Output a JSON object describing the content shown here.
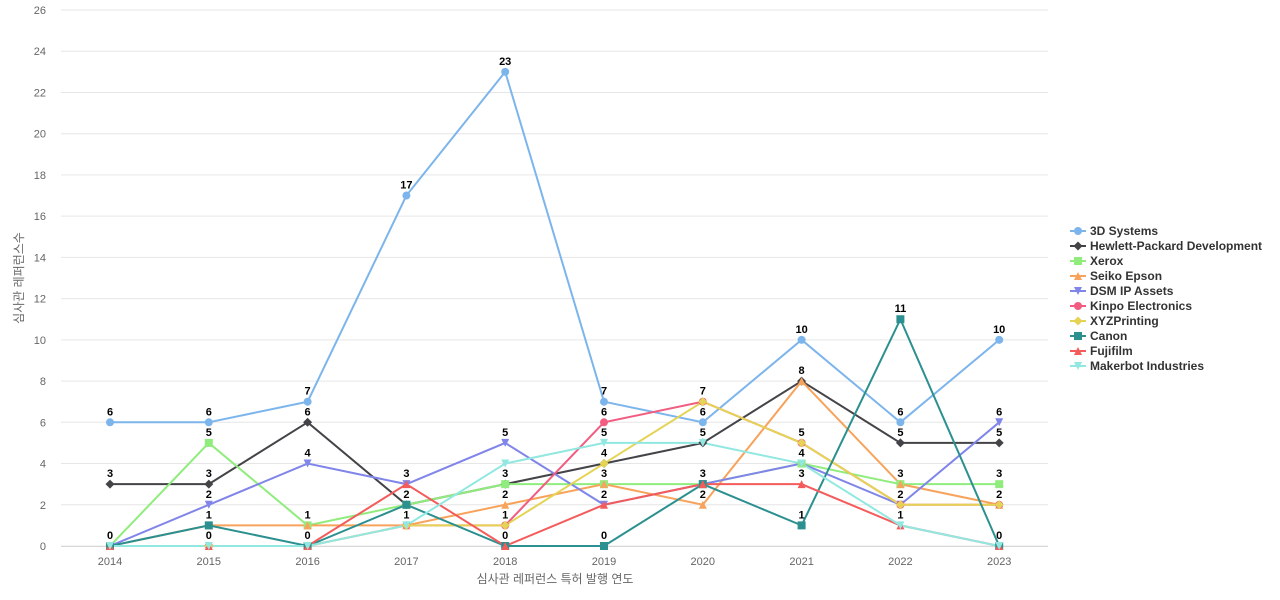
{
  "chart_data": {
    "type": "line",
    "title": "",
    "xlabel": "심사관 레퍼런스 특허 발행 연도",
    "ylabel": "심사관 레퍼런스수",
    "x": [
      "2014",
      "2015",
      "2016",
      "2017",
      "2018",
      "2019",
      "2020",
      "2021",
      "2022",
      "2023"
    ],
    "ylim": [
      0,
      26
    ],
    "yticks": [
      0,
      2,
      4,
      6,
      8,
      10,
      12,
      14,
      16,
      18,
      20,
      22,
      24,
      26
    ],
    "grid": true,
    "legend_position": "right",
    "series": [
      {
        "name": "3D Systems",
        "color": "#7cb5ec",
        "marker": "circle",
        "values": [
          6,
          6,
          7,
          17,
          23,
          7,
          6,
          10,
          6,
          10
        ]
      },
      {
        "name": "Hewlett-Packard Development",
        "color": "#434348",
        "marker": "diamond",
        "values": [
          3,
          3,
          6,
          2,
          3,
          4,
          5,
          8,
          5,
          5
        ]
      },
      {
        "name": "Xerox",
        "color": "#90ed7d",
        "marker": "square",
        "values": [
          0,
          5,
          1,
          2,
          3,
          3,
          3,
          4,
          3,
          3
        ]
      },
      {
        "name": "Seiko Epson",
        "color": "#f7a35c",
        "marker": "triangle",
        "values": [
          0,
          1,
          1,
          1,
          2,
          3,
          2,
          8,
          3,
          2
        ]
      },
      {
        "name": "DSM IP Assets",
        "color": "#8085e9",
        "marker": "triangle-down",
        "values": [
          0,
          2,
          4,
          3,
          5,
          2,
          3,
          4,
          2,
          6
        ]
      },
      {
        "name": "Kinpo Electronics",
        "color": "#f15c80",
        "marker": "circle",
        "values": [
          0,
          0,
          0,
          1,
          1,
          6,
          7,
          5,
          2,
          2
        ]
      },
      {
        "name": "XYZPrinting",
        "color": "#e4d354",
        "marker": "diamond",
        "values": [
          0,
          0,
          0,
          1,
          1,
          4,
          7,
          5,
          2,
          2
        ]
      },
      {
        "name": "Canon",
        "color": "#2b908f",
        "marker": "square",
        "values": [
          0,
          1,
          0,
          2,
          0,
          0,
          3,
          1,
          11,
          0
        ]
      },
      {
        "name": "Fujifilm",
        "color": "#f45b5b",
        "marker": "triangle",
        "values": [
          0,
          0,
          0,
          3,
          0,
          2,
          3,
          3,
          1,
          0
        ]
      },
      {
        "name": "Makerbot Industries",
        "color": "#91e8e1",
        "marker": "triangle-down",
        "values": [
          0,
          0,
          0,
          1,
          4,
          5,
          5,
          4,
          1,
          0
        ]
      }
    ],
    "data_labels": [
      {
        "x": "2014",
        "text": "6",
        "value": 6
      },
      {
        "x": "2014",
        "text": "3",
        "value": 3
      },
      {
        "x": "2014",
        "text": "0",
        "value": 0
      },
      {
        "x": "2015",
        "text": "6",
        "value": 6
      },
      {
        "x": "2015",
        "text": "5",
        "value": 5
      },
      {
        "x": "2015",
        "text": "3",
        "value": 3
      },
      {
        "x": "2015",
        "text": "2",
        "value": 2
      },
      {
        "x": "2015",
        "text": "1",
        "value": 1
      },
      {
        "x": "2015",
        "text": "0",
        "value": 0
      },
      {
        "x": "2016",
        "text": "7",
        "value": 7
      },
      {
        "x": "2016",
        "text": "6",
        "value": 6
      },
      {
        "x": "2016",
        "text": "4",
        "value": 4
      },
      {
        "x": "2016",
        "text": "1",
        "value": 1
      },
      {
        "x": "2016",
        "text": "0",
        "value": 0
      },
      {
        "x": "2017",
        "text": "17",
        "value": 17
      },
      {
        "x": "2017",
        "text": "3",
        "value": 3
      },
      {
        "x": "2017",
        "text": "2",
        "value": 2
      },
      {
        "x": "2017",
        "text": "1",
        "value": 1
      },
      {
        "x": "2018",
        "text": "23",
        "value": 23
      },
      {
        "x": "2018",
        "text": "5",
        "value": 5
      },
      {
        "x": "2018",
        "text": "3",
        "value": 3
      },
      {
        "x": "2018",
        "text": "2",
        "value": 2
      },
      {
        "x": "2018",
        "text": "1",
        "value": 1
      },
      {
        "x": "2018",
        "text": "0",
        "value": 0
      },
      {
        "x": "2019",
        "text": "7",
        "value": 7
      },
      {
        "x": "2019",
        "text": "6",
        "value": 6
      },
      {
        "x": "2019",
        "text": "5",
        "value": 5
      },
      {
        "x": "2019",
        "text": "4",
        "value": 4
      },
      {
        "x": "2019",
        "text": "3",
        "value": 3
      },
      {
        "x": "2019",
        "text": "2",
        "value": 2
      },
      {
        "x": "2019",
        "text": "0",
        "value": 0
      },
      {
        "x": "2020",
        "text": "7",
        "value": 7
      },
      {
        "x": "2020",
        "text": "6",
        "value": 6
      },
      {
        "x": "2020",
        "text": "5",
        "value": 5
      },
      {
        "x": "2020",
        "text": "3",
        "value": 3
      },
      {
        "x": "2020",
        "text": "2",
        "value": 2
      },
      {
        "x": "2021",
        "text": "10",
        "value": 10
      },
      {
        "x": "2021",
        "text": "8",
        "value": 8
      },
      {
        "x": "2021",
        "text": "5",
        "value": 5
      },
      {
        "x": "2021",
        "text": "4",
        "value": 4
      },
      {
        "x": "2021",
        "text": "3",
        "value": 3
      },
      {
        "x": "2021",
        "text": "1",
        "value": 1
      },
      {
        "x": "2022",
        "text": "11",
        "value": 11
      },
      {
        "x": "2022",
        "text": "6",
        "value": 6
      },
      {
        "x": "2022",
        "text": "5",
        "value": 5
      },
      {
        "x": "2022",
        "text": "3",
        "value": 3
      },
      {
        "x": "2022",
        "text": "2",
        "value": 2
      },
      {
        "x": "2022",
        "text": "1",
        "value": 1
      },
      {
        "x": "2023",
        "text": "10",
        "value": 10
      },
      {
        "x": "2023",
        "text": "6",
        "value": 6
      },
      {
        "x": "2023",
        "text": "5",
        "value": 5
      },
      {
        "x": "2023",
        "text": "3",
        "value": 3
      },
      {
        "x": "2023",
        "text": "2",
        "value": 2
      },
      {
        "x": "2023",
        "text": "0",
        "value": 0
      }
    ]
  }
}
